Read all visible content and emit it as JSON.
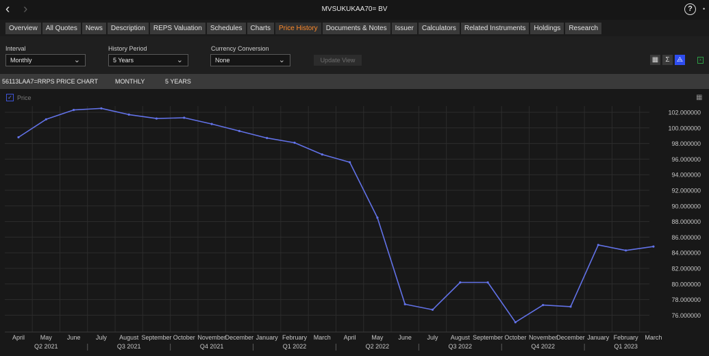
{
  "window": {
    "title": "MVSUKUKAA70= BV",
    "back_icon": "chevron-left-icon",
    "forward_icon": "chevron-right-icon",
    "help_label": "?",
    "more_icon": "dot-icon"
  },
  "tabs": [
    {
      "label": "Overview"
    },
    {
      "label": "All Quotes"
    },
    {
      "label": "News"
    },
    {
      "label": "Description"
    },
    {
      "label": "REPS Valuation"
    },
    {
      "label": "Schedules"
    },
    {
      "label": "Charts"
    },
    {
      "label": "Price History",
      "active": true
    },
    {
      "label": "Documents & Notes"
    },
    {
      "label": "Issuer"
    },
    {
      "label": "Calculators"
    },
    {
      "label": "Related Instruments"
    },
    {
      "label": "Holdings"
    },
    {
      "label": "Research"
    }
  ],
  "controls": {
    "interval": {
      "label": "Interval",
      "value": "Monthly"
    },
    "history_period": {
      "label": "History Period",
      "value": "5 Years"
    },
    "currency_conversion": {
      "label": "Currency Conversion",
      "value": "None"
    },
    "update_button": "Update View",
    "view_icons": [
      "table-icon",
      "sigma-icon",
      "line-chart-icon"
    ],
    "active_view": "line-chart-icon",
    "export_icon": "excel-icon"
  },
  "chart_header": {
    "ric": "56113LAA7=RRPS PRICE CHART",
    "interval": "MONTHLY",
    "period": "5 YEARS"
  },
  "legend": {
    "label": "Price",
    "checked": true,
    "color": "#6272e8"
  },
  "chart_data": {
    "type": "line",
    "x": [
      "April",
      "May",
      "June",
      "July",
      "August",
      "September",
      "October",
      "November",
      "December",
      "January",
      "February",
      "March",
      "April",
      "May",
      "June",
      "July",
      "August",
      "September",
      "October",
      "November",
      "December",
      "January",
      "February",
      "March"
    ],
    "quarters": [
      "Q2 2021",
      "Q3 2021",
      "Q4 2021",
      "Q1 2022",
      "Q2 2022",
      "Q3 2022",
      "Q4 2022",
      "Q1 2023"
    ],
    "series": [
      {
        "name": "Price",
        "color": "#6272e8",
        "values": [
          98.8,
          101.1,
          102.3,
          102.5,
          101.7,
          101.2,
          101.3,
          100.5,
          99.6,
          98.7,
          98.1,
          96.6,
          95.6,
          88.5,
          77.4,
          76.7,
          80.2,
          80.2,
          75.1,
          77.3,
          77.1,
          85.0,
          84.3,
          84.8
        ]
      }
    ],
    "y_ticks": [
      "102.000000",
      "100.000000",
      "98.000000",
      "96.000000",
      "94.000000",
      "92.000000",
      "90.000000",
      "88.000000",
      "86.000000",
      "84.000000",
      "82.000000",
      "80.000000",
      "78.000000",
      "76.000000"
    ],
    "ylim": [
      74.1,
      103.2
    ],
    "grid": true
  }
}
